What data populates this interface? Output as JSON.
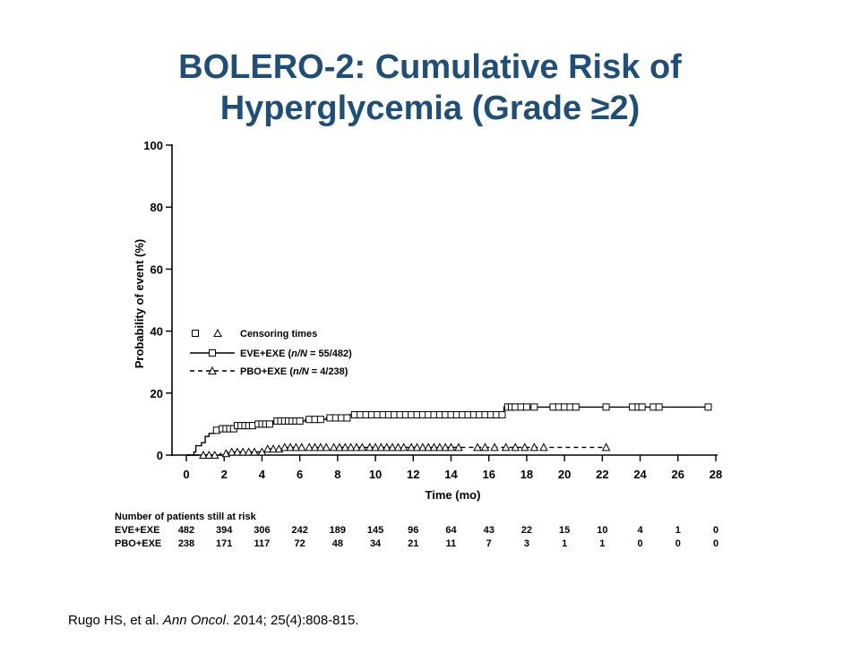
{
  "slide": {
    "title_line1": "BOLERO-2: Cumulative Risk of",
    "title_line2": "Hyperglycemia (Grade ≥2)"
  },
  "chart_data": {
    "type": "line",
    "subtype": "kaplan-meier-cumulative-incidence",
    "xlabel": "Time (mo)",
    "ylabel": "Probability of event (%)",
    "xlim": [
      0,
      28
    ],
    "ylim": [
      0,
      100
    ],
    "x_ticks": [
      0,
      2,
      4,
      6,
      8,
      10,
      12,
      14,
      16,
      18,
      20,
      22,
      24,
      26,
      28
    ],
    "y_ticks": [
      0,
      20,
      40,
      60,
      80,
      100
    ],
    "grid": false,
    "legend": {
      "placement": "middle-left",
      "censoring_label": "Censoring times",
      "entries": [
        {
          "prefix": "EVE+EXE (",
          "n_italic": "n/N",
          "suffix": " = 55/482)"
        },
        {
          "prefix": "PBO+EXE (",
          "n_italic": "n/N",
          "suffix": " = 4/238)"
        }
      ]
    },
    "series": [
      {
        "name": "EVE+EXE",
        "line": "solid",
        "marker": "square",
        "steps": [
          [
            0,
            0
          ],
          [
            0.4,
            0
          ],
          [
            0.4,
            1
          ],
          [
            0.5,
            1
          ],
          [
            0.5,
            3
          ],
          [
            0.8,
            3
          ],
          [
            0.8,
            4
          ],
          [
            1.0,
            4
          ],
          [
            1.0,
            6
          ],
          [
            1.2,
            6
          ],
          [
            1.2,
            7
          ],
          [
            1.5,
            7
          ],
          [
            1.5,
            8
          ],
          [
            1.8,
            8
          ],
          [
            1.8,
            8.5
          ],
          [
            2.6,
            8.5
          ],
          [
            2.6,
            9.5
          ],
          [
            3.6,
            9.5
          ],
          [
            3.6,
            10
          ],
          [
            4.6,
            10
          ],
          [
            4.6,
            11
          ],
          [
            6.3,
            11
          ],
          [
            6.3,
            11.5
          ],
          [
            7.4,
            11.5
          ],
          [
            7.4,
            12
          ],
          [
            8.6,
            12
          ],
          [
            8.6,
            13
          ],
          [
            16.8,
            13
          ],
          [
            16.8,
            15.5
          ],
          [
            27.6,
            15.5
          ]
        ],
        "censor_x": [
          1.6,
          1.9,
          2.1,
          2.3,
          2.5,
          2.7,
          2.9,
          3.1,
          3.3,
          3.5,
          3.8,
          4.0,
          4.2,
          4.4,
          4.8,
          5.0,
          5.2,
          5.4,
          5.6,
          5.8,
          6.0,
          6.5,
          6.8,
          7.1,
          7.6,
          7.9,
          8.2,
          8.5,
          8.9,
          9.2,
          9.5,
          9.8,
          10.1,
          10.4,
          10.7,
          11.0,
          11.3,
          11.6,
          11.9,
          12.2,
          12.5,
          12.8,
          13.1,
          13.4,
          13.7,
          14.0,
          14.3,
          14.6,
          14.9,
          15.2,
          15.5,
          15.8,
          16.1,
          16.4,
          16.7,
          17.0,
          17.2,
          17.4,
          17.7,
          18.0,
          18.4,
          19.4,
          19.7,
          20.0,
          20.3,
          20.6,
          22.2,
          23.6,
          23.9,
          24.1,
          24.7,
          25.0,
          27.6
        ]
      },
      {
        "name": "PBO+EXE",
        "line": "dashed",
        "marker": "triangle",
        "steps": [
          [
            0,
            0
          ],
          [
            1.8,
            0
          ],
          [
            1.8,
            0.5
          ],
          [
            2.2,
            0.5
          ],
          [
            2.2,
            1
          ],
          [
            4.2,
            1
          ],
          [
            4.2,
            2
          ],
          [
            5.0,
            2
          ],
          [
            5.0,
            2.5
          ],
          [
            22.2,
            2.5
          ]
        ],
        "censor_x": [
          0.9,
          1.2,
          1.5,
          2.1,
          2.4,
          2.7,
          3.0,
          3.3,
          3.6,
          4.0,
          4.3,
          4.6,
          4.9,
          5.2,
          5.5,
          5.8,
          6.1,
          6.5,
          6.8,
          7.1,
          7.4,
          7.8,
          8.1,
          8.4,
          8.7,
          9.0,
          9.3,
          9.7,
          10.0,
          10.3,
          10.6,
          10.9,
          11.2,
          11.5,
          11.9,
          12.2,
          12.5,
          12.8,
          13.1,
          13.4,
          13.7,
          14.0,
          14.4,
          15.4,
          15.8,
          16.3,
          16.9,
          17.4,
          17.9,
          18.4,
          18.9,
          22.2
        ]
      }
    ],
    "risk_table": {
      "title": "Number of patients still at risk",
      "rows": [
        {
          "label": "EVE+EXE",
          "values": [
            "482",
            "394",
            "306",
            "242",
            "189",
            "145",
            "96",
            "64",
            "43",
            "22",
            "15",
            "10",
            "4",
            "1",
            "0"
          ]
        },
        {
          "label": "PBO+EXE",
          "values": [
            "238",
            "171",
            "117",
            "72",
            "48",
            "34",
            "21",
            "11",
            "7",
            "3",
            "1",
            "1",
            "0",
            "0",
            "0"
          ]
        }
      ]
    }
  },
  "citation": {
    "authors": "Rugo HS, et al. ",
    "journal": "Ann Oncol",
    "details": ". 2014; 25(4):808-815."
  }
}
